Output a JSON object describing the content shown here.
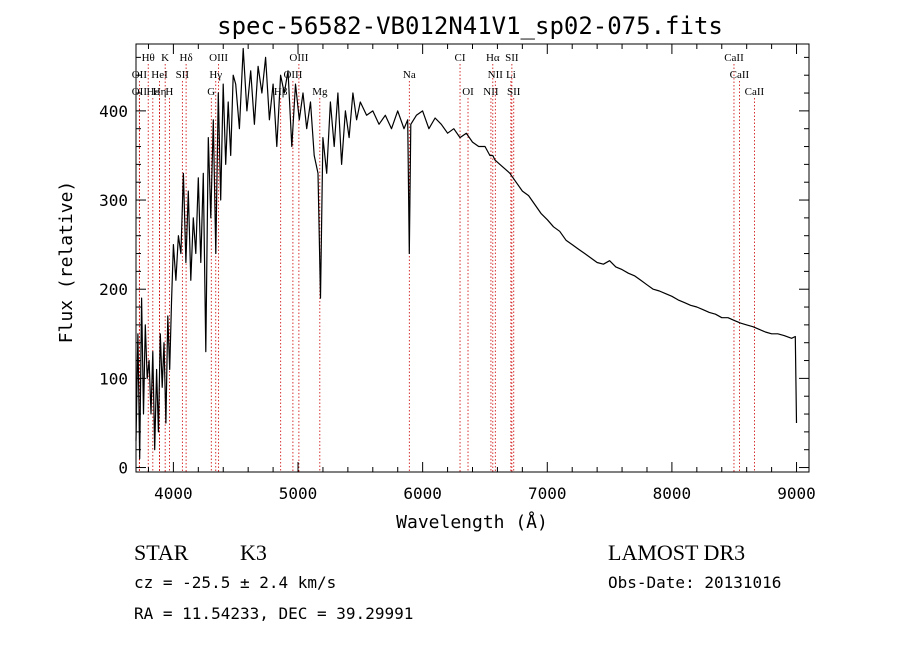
{
  "chart_data": {
    "type": "line",
    "title": "spec-56582-VB012N41V1_sp02-075.fits",
    "xlabel": "Wavelength (Å)",
    "ylabel": "Flux (relative)",
    "xlim": [
      3700,
      9100
    ],
    "ylim": [
      -5,
      475
    ],
    "xticks": [
      4000,
      5000,
      6000,
      7000,
      8000,
      9000
    ],
    "xtick_labels": [
      "4000",
      "5000",
      "6000",
      "7000",
      "8000",
      "9000"
    ],
    "yticks": [
      0,
      100,
      200,
      300,
      400
    ],
    "ytick_labels": [
      "0",
      "100",
      "200",
      "300",
      "400"
    ],
    "grid": false,
    "series": [
      {
        "name": "spectrum",
        "x": [
          3700,
          3715,
          3730,
          3745,
          3760,
          3775,
          3790,
          3805,
          3820,
          3835,
          3850,
          3865,
          3880,
          3895,
          3910,
          3925,
          3940,
          3955,
          3970,
          3985,
          4000,
          4020,
          4040,
          4060,
          4080,
          4100,
          4120,
          4140,
          4160,
          4180,
          4200,
          4220,
          4240,
          4260,
          4280,
          4300,
          4320,
          4340,
          4360,
          4380,
          4400,
          4420,
          4440,
          4460,
          4480,
          4500,
          4530,
          4560,
          4590,
          4620,
          4650,
          4680,
          4710,
          4740,
          4770,
          4800,
          4830,
          4860,
          4890,
          4920,
          4950,
          4980,
          5010,
          5040,
          5070,
          5100,
          5130,
          5160,
          5180,
          5200,
          5230,
          5260,
          5290,
          5320,
          5350,
          5380,
          5410,
          5440,
          5470,
          5500,
          5550,
          5600,
          5650,
          5700,
          5750,
          5800,
          5850,
          5880,
          5893,
          5905,
          5950,
          6000,
          6050,
          6100,
          6150,
          6200,
          6250,
          6300,
          6350,
          6400,
          6450,
          6500,
          6540,
          6563,
          6580,
          6620,
          6660,
          6700,
          6750,
          6800,
          6850,
          6900,
          6950,
          7000,
          7050,
          7100,
          7150,
          7200,
          7250,
          7300,
          7350,
          7400,
          7450,
          7500,
          7550,
          7600,
          7650,
          7700,
          7750,
          7800,
          7850,
          7900,
          7950,
          8000,
          8050,
          8100,
          8150,
          8200,
          8250,
          8300,
          8350,
          8400,
          8450,
          8500,
          8550,
          8600,
          8650,
          8700,
          8750,
          8800,
          8850,
          8900,
          8960,
          8990,
          9000
        ],
        "y": [
          30,
          150,
          10,
          190,
          60,
          160,
          100,
          120,
          60,
          130,
          20,
          110,
          40,
          150,
          90,
          140,
          50,
          170,
          110,
          185,
          250,
          210,
          260,
          240,
          330,
          230,
          310,
          210,
          280,
          240,
          325,
          230,
          330,
          130,
          370,
          280,
          390,
          240,
          420,
          300,
          430,
          340,
          410,
          350,
          440,
          430,
          380,
          470,
          400,
          445,
          385,
          450,
          420,
          460,
          390,
          430,
          360,
          440,
          420,
          445,
          360,
          430,
          390,
          420,
          380,
          410,
          350,
          330,
          190,
          370,
          330,
          410,
          360,
          420,
          340,
          400,
          370,
          420,
          390,
          410,
          395,
          400,
          385,
          395,
          380,
          400,
          380,
          390,
          240,
          385,
          395,
          400,
          380,
          392,
          385,
          375,
          380,
          370,
          375,
          365,
          360,
          360,
          350,
          350,
          345,
          340,
          335,
          330,
          320,
          310,
          305,
          295,
          285,
          278,
          270,
          265,
          255,
          250,
          245,
          240,
          235,
          230,
          228,
          232,
          225,
          222,
          218,
          215,
          210,
          205,
          200,
          198,
          195,
          192,
          188,
          185,
          182,
          180,
          177,
          174,
          172,
          168,
          168,
          165,
          162,
          160,
          158,
          155,
          152,
          150,
          150,
          148,
          145,
          147,
          50
        ],
        "color": "#000000"
      }
    ],
    "annotations": [
      {
        "label": "Hθ",
        "x": 3798,
        "row": 1
      },
      {
        "label": "K",
        "x": 3934,
        "row": 1
      },
      {
        "label": "Hδ",
        "x": 4102,
        "row": 1
      },
      {
        "label": "OIII",
        "x": 4363,
        "row": 1
      },
      {
        "label": "OIII",
        "x": 5007,
        "row": 1
      },
      {
        "label": "CI",
        "x": 6300,
        "row": 1
      },
      {
        "label": "Hα",
        "x": 6563,
        "row": 1
      },
      {
        "label": "SII",
        "x": 6716,
        "row": 1
      },
      {
        "label": "CaII",
        "x": 8498,
        "row": 1
      },
      {
        "label": "OII",
        "x": 3727,
        "row": 2
      },
      {
        "label": "HeI",
        "x": 3889,
        "row": 2
      },
      {
        "label": "SII",
        "x": 4072,
        "row": 2
      },
      {
        "label": "Hγ",
        "x": 4340,
        "row": 2
      },
      {
        "label": "OIII",
        "x": 4959,
        "row": 2
      },
      {
        "label": "Na",
        "x": 5893,
        "row": 2
      },
      {
        "label": "NII",
        "x": 6583,
        "row": 2
      },
      {
        "label": "Li",
        "x": 6708,
        "row": 2
      },
      {
        "label": "CaII",
        "x": 8542,
        "row": 2
      },
      {
        "label": "OII",
        "x": 3727,
        "row": 3
      },
      {
        "label": "Hε",
        "x": 3835,
        "row": 3
      },
      {
        "label": "Hη",
        "x": 3889,
        "row": 3
      },
      {
        "label": "H",
        "x": 3968,
        "row": 3
      },
      {
        "label": "G",
        "x": 4304,
        "row": 3
      },
      {
        "label": "Hβ",
        "x": 4861,
        "row": 3
      },
      {
        "label": "Mg",
        "x": 5175,
        "row": 3
      },
      {
        "label": "OI",
        "x": 6364,
        "row": 3
      },
      {
        "label": "NII",
        "x": 6548,
        "row": 3
      },
      {
        "label": "SII",
        "x": 6731,
        "row": 3
      },
      {
        "label": "CaII",
        "x": 8662,
        "row": 3
      }
    ],
    "line_color": "#cc0000"
  },
  "info": {
    "object_type": "STAR",
    "subclass": "K3",
    "survey": "LAMOST DR3",
    "redshift": "cz = -25.5 ± 2.4 km/s",
    "obs_date": "Obs-Date: 20131016",
    "coords": "RA =  11.54233, DEC =  39.29991"
  }
}
